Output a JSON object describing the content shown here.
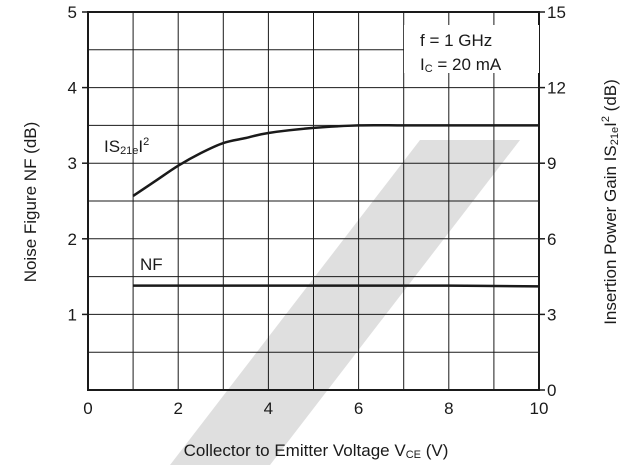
{
  "chart_data": {
    "type": "line",
    "x": {
      "label_main": "Collector to Emitter Voltage  V",
      "label_sub": "CE",
      "label_end": " (V)",
      "range": [
        0,
        10
      ],
      "ticks": [
        "0",
        "2",
        "4",
        "6",
        "8",
        "10"
      ],
      "tick_values": [
        0,
        2,
        4,
        6,
        8,
        10
      ]
    },
    "y_left": {
      "label": "Noise Figure  NF (dB)",
      "range": [
        0,
        5
      ],
      "ticks": [
        "1",
        "2",
        "3",
        "4",
        "5"
      ],
      "tick_values": [
        1,
        2,
        3,
        4,
        5
      ]
    },
    "y_right": {
      "label_main": "Insertion Power Gain  IS",
      "label_sub": "21e",
      "label_mid": "I",
      "label_sup": "2",
      "label_end": " (dB)",
      "range": [
        0,
        15
      ],
      "ticks": [
        "0",
        "3",
        "6",
        "9",
        "12",
        "15"
      ],
      "tick_values": [
        0,
        3,
        6,
        9,
        12,
        15
      ]
    },
    "grid": true,
    "annotations": {
      "freq": "f = 1 GHz",
      "current_main": "I",
      "current_sub": "C",
      "current_end": " = 20 mA"
    },
    "series": [
      {
        "name": "IS21eI2",
        "label_main": "IS",
        "label_sub": "21e",
        "label_mid": "I",
        "label_sup": "2",
        "axis": "right",
        "x": [
          1,
          1.5,
          2,
          2.5,
          3,
          3.5,
          4,
          5,
          6,
          7,
          8,
          9,
          10
        ],
        "y": [
          7.7,
          8.3,
          8.9,
          9.4,
          9.8,
          10.0,
          10.2,
          10.4,
          10.5,
          10.5,
          10.5,
          10.5,
          10.5
        ]
      },
      {
        "name": "NF",
        "label_main": "NF",
        "axis": "left",
        "x": [
          1,
          2,
          4,
          6,
          8,
          10
        ],
        "y": [
          1.38,
          1.38,
          1.38,
          1.38,
          1.38,
          1.37
        ]
      }
    ],
    "colors": {
      "line": "#1a1a1a",
      "grid": "#1a1a1a",
      "watermark": "#d9d9d9"
    }
  }
}
